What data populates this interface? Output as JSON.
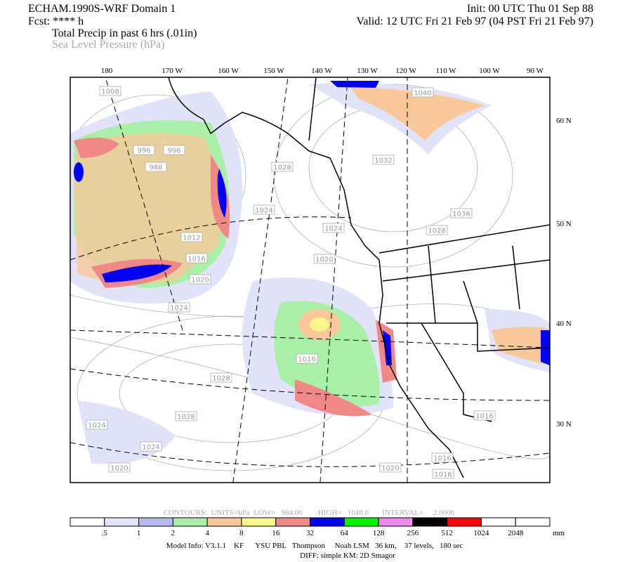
{
  "header": {
    "title": "ECHAM.1990S-WRF Domain 1",
    "forecast": "Fcst: **** h",
    "field_1": "Total Precip in past 6 hrs (.01in)",
    "field_2": "Sea Level Pressure (hPa)",
    "init": "Init: 00 UTC Thu 01 Sep 88",
    "valid": "Valid: 12 UTC Fri 21 Feb 97 (04 PST Fri 21 Feb 97)"
  },
  "map": {
    "longitude_labels": [
      "180",
      "170 W",
      "160 W",
      "150 W",
      "140 W",
      "130 W",
      "120 W",
      "110 W",
      "100 W",
      "90 W"
    ],
    "latitude_labels": [
      "60 N",
      "50 N",
      "40 N",
      "30 N"
    ],
    "contour_labels": [
      "1008",
      "996",
      "996",
      "988",
      "1040",
      "1032",
      "1028",
      "1024",
      "1024",
      "1036",
      "1028",
      "1012",
      "1016",
      "1020",
      "1020",
      "1024",
      "1016",
      "1028",
      "1028",
      "1024",
      "1024",
      "1020",
      "1020",
      "1016",
      "1016",
      "1016"
    ]
  },
  "contour_info": "CONTOURS:  UNITS=hPa  LOW=   984.00        HIGH=   1048.0       INTERVAL=     2.0000",
  "colorbar": {
    "labels": [
      ".5",
      "1",
      "2",
      "4",
      "8",
      "16",
      "32",
      "64",
      "128",
      "256",
      "512",
      "1024",
      "2048"
    ],
    "unit": "mm",
    "colors": [
      "#ffffff",
      "#e2e2f8",
      "#b8b8f2",
      "#a8f0a8",
      "#f8c898",
      "#f8f888",
      "#f08888",
      "#0000f0",
      "#00f000",
      "#f088f0",
      "#000000",
      "#ff0000",
      "#ffffff",
      "#ffffff"
    ]
  },
  "footer": {
    "model_info": "Model Info: V3.1.1    KF      YSU PBL   Thompson     Noah LSM   36 km,    37 levels,   180 sec",
    "diff": "DIFF: simple KM: 2D Smagor"
  }
}
